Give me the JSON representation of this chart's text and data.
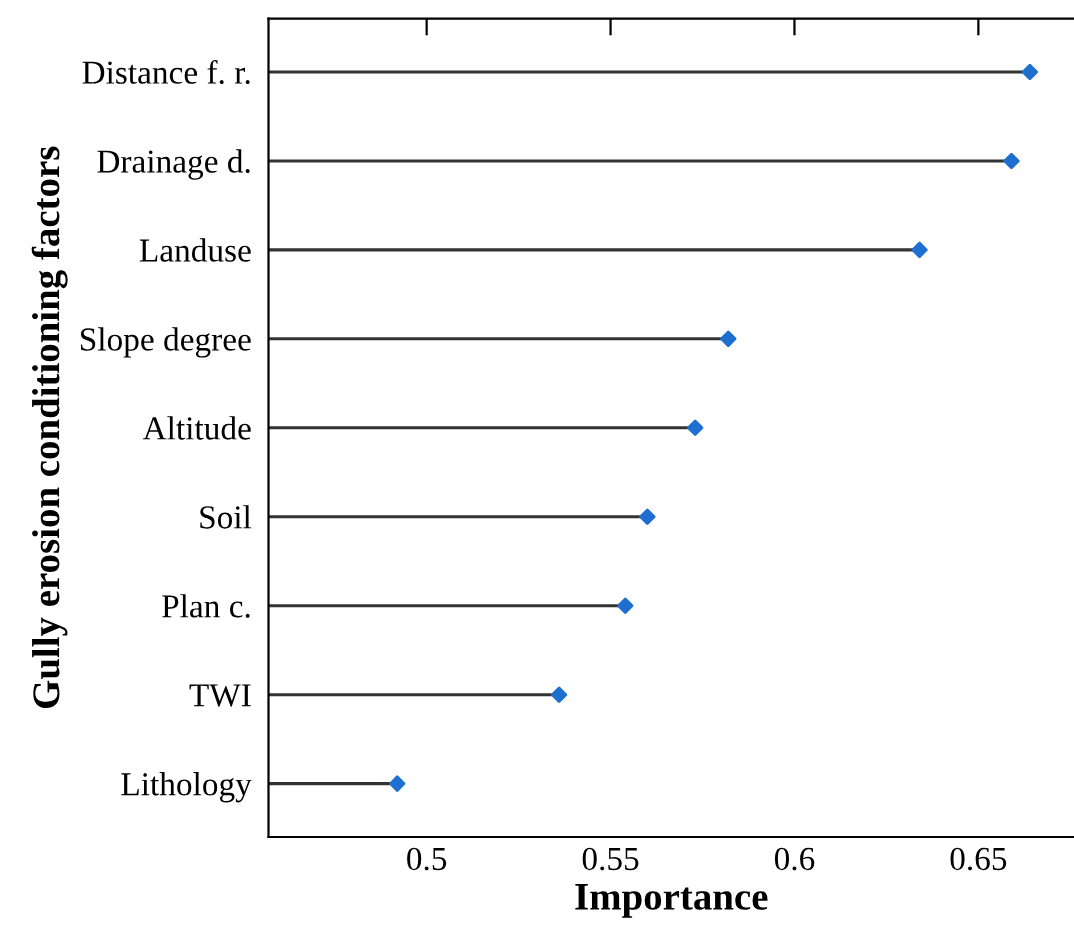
{
  "chart_data": {
    "type": "lollipop",
    "orientation": "horizontal",
    "xlabel": "Importance",
    "ylabel": "Gully erosion conditioning factors",
    "categories": [
      "Distance f. r.",
      "Drainage d.",
      "Landuse",
      "Slope degree",
      "Altitude",
      "Soil",
      "Plan c.",
      "TWI",
      "Lithology"
    ],
    "values": [
      0.664,
      0.659,
      0.634,
      0.582,
      0.573,
      0.56,
      0.554,
      0.536,
      0.492
    ],
    "color": "#1f6fd1",
    "marker": "diamond",
    "xlim": [
      0.457,
      0.676
    ],
    "xticks": [
      0.5,
      0.55,
      0.6,
      0.65
    ],
    "grid": false,
    "legend": false
  }
}
